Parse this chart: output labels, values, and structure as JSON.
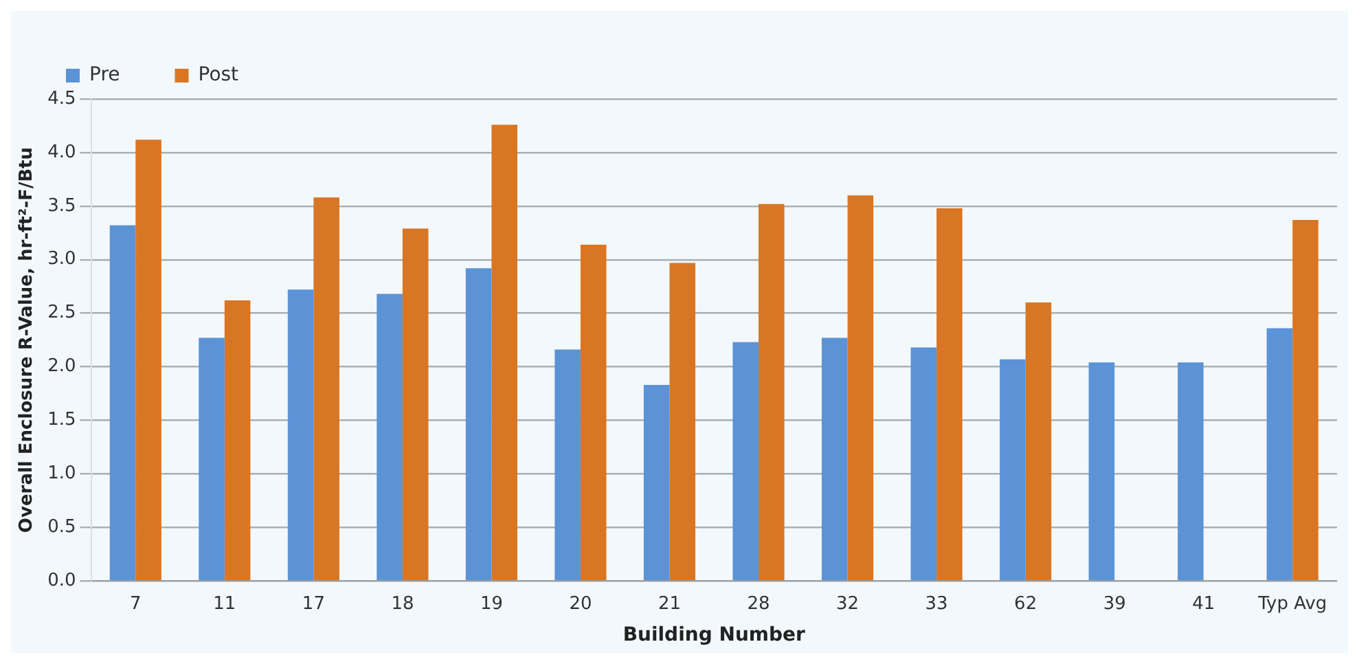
{
  "chart_data": {
    "type": "bar",
    "xlabel": "Building Number",
    "ylabel": "Overall Enclosure R-Value, hr-ft²-F/Btu",
    "categories": [
      "7",
      "11",
      "17",
      "18",
      "19",
      "20",
      "21",
      "28",
      "32",
      "33",
      "62",
      "39",
      "41",
      "Typ Avg"
    ],
    "series": [
      {
        "name": "Pre",
        "color": "#5b93d6",
        "values": [
          3.32,
          2.27,
          2.72,
          2.68,
          2.92,
          2.16,
          1.83,
          2.23,
          2.27,
          2.18,
          2.07,
          2.04,
          2.04,
          2.36
        ]
      },
      {
        "name": "Post",
        "color": "#d97624",
        "values": [
          4.12,
          2.62,
          3.58,
          3.29,
          4.26,
          3.14,
          2.97,
          3.52,
          3.6,
          3.48,
          2.6,
          null,
          null,
          3.37
        ]
      }
    ],
    "ylim": [
      0,
      4.5
    ],
    "yticks": [
      {
        "value": 0,
        "label": "0.0"
      },
      0.5,
      {
        "value": 1,
        "label": "1.0"
      },
      1.5,
      {
        "value": 2,
        "label": "2.0"
      },
      2.5,
      {
        "value": 3,
        "label": "3.0"
      },
      3.5,
      {
        "value": 4,
        "label": "4.0"
      },
      4.5
    ],
    "grid": "y",
    "legend": "top left"
  }
}
